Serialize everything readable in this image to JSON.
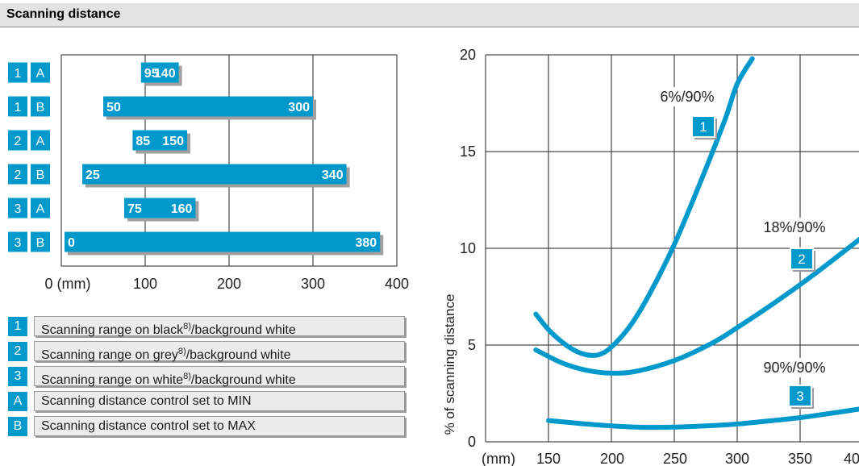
{
  "header": {
    "title": "Scanning distance"
  },
  "colors": {
    "accent": "#0099cc",
    "legend_box": "#ececec"
  },
  "legend": {
    "items": [
      {
        "key": "1",
        "pre": "Scanning range on black",
        "sup": "8)",
        "post": "/background white"
      },
      {
        "key": "2",
        "pre": "Scanning range on grey",
        "sup": "8)",
        "post": "/background white"
      },
      {
        "key": "3",
        "pre": "Scanning range on  white",
        "sup": "8)",
        "post": "/background white"
      },
      {
        "key": "A",
        "pre": "Scanning distance control set to MIN",
        "sup": "",
        "post": ""
      },
      {
        "key": "B",
        "pre": "Scanning distance control set to MAX",
        "sup": "",
        "post": ""
      }
    ]
  },
  "chart_data": [
    {
      "type": "bar",
      "orientation": "horizontal-range",
      "xlim": [
        0,
        400
      ],
      "x_ticks": [
        "0 (mm)",
        "100",
        "200",
        "300",
        "400"
      ],
      "grid": true,
      "rows": [
        {
          "label1": "1",
          "label2": "A",
          "start": 95,
          "end": 140,
          "start_label": "95",
          "end_label": "140"
        },
        {
          "label1": "1",
          "label2": "B",
          "start": 50,
          "end": 300,
          "start_label": "50",
          "end_label": "300"
        },
        {
          "label1": "2",
          "label2": "A",
          "start": 85,
          "end": 150,
          "start_label": "85",
          "end_label": "150"
        },
        {
          "label1": "2",
          "label2": "B",
          "start": 25,
          "end": 340,
          "start_label": "25",
          "end_label": "340"
        },
        {
          "label1": "3",
          "label2": "A",
          "start": 75,
          "end": 160,
          "start_label": "75",
          "end_label": "160"
        },
        {
          "label1": "3",
          "label2": "B",
          "start": 0,
          "end": 380,
          "start_label": "0",
          "end_label": "380"
        }
      ]
    },
    {
      "type": "line",
      "xlim": [
        125,
        400
      ],
      "ylim": [
        0,
        20
      ],
      "x_ticks": [
        "(mm)",
        "150",
        "200",
        "250",
        "300",
        "350",
        "40"
      ],
      "y_ticks": [
        "0",
        "5",
        "10",
        "15",
        "20"
      ],
      "ylabel": "% of scanning distance",
      "grid": true,
      "series": [
        {
          "badge": "1",
          "label": "6%/90%",
          "x": [
            140,
            150,
            160,
            170,
            180,
            190,
            200,
            215,
            230,
            250,
            270,
            290,
            300,
            312
          ],
          "y": [
            6.6,
            5.8,
            5.2,
            4.75,
            4.5,
            4.5,
            4.9,
            6.0,
            7.6,
            10.2,
            13.3,
            16.6,
            18.5,
            19.8
          ]
        },
        {
          "badge": "2",
          "label": "18%/90%",
          "x": [
            140,
            160,
            180,
            200,
            220,
            250,
            280,
            300,
            330,
            360,
            390,
            400
          ],
          "y": [
            4.75,
            4.1,
            3.7,
            3.55,
            3.65,
            4.2,
            5.1,
            5.9,
            7.2,
            8.6,
            10.1,
            10.6
          ]
        },
        {
          "badge": "3",
          "label": "90%/90%",
          "x": [
            150,
            175,
            200,
            225,
            250,
            275,
            300,
            325,
            350,
            375,
            400
          ],
          "y": [
            1.1,
            0.95,
            0.82,
            0.75,
            0.76,
            0.82,
            0.92,
            1.08,
            1.25,
            1.48,
            1.72
          ]
        }
      ]
    }
  ]
}
